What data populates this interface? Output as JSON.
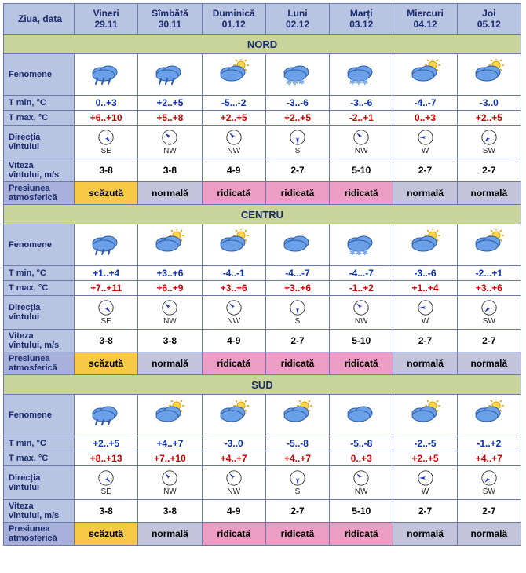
{
  "colors": {
    "header_bg": "#b7c4e2",
    "header_text": "#1a2a6e",
    "region_bg": "#c9d49a",
    "border": "#6a7aa8",
    "tmin_text": "#0a2fb8",
    "tmax_text": "#d30000",
    "press_label_bg": "#a6b0d8",
    "press_low_bg": "#f7c945",
    "press_normal_bg": "#c3c3dc",
    "press_high_bg": "#ec9dc4",
    "cloud_fill": "#6aa0e8",
    "cloud_stroke": "#2d5aa8",
    "sun_fill": "#ffd54a",
    "sun_stroke": "#e0a100",
    "snow_color": "#7aa8e6",
    "compass_ring": "#333333",
    "compass_needle": "#1a2fb8"
  },
  "header": {
    "corner": "Ziua, data",
    "days": [
      {
        "label": "Vineri\n29.11"
      },
      {
        "label": "Sîmbătă\n30.11"
      },
      {
        "label": "Duminică\n01.12"
      },
      {
        "label": "Luni\n02.12"
      },
      {
        "label": "Marți\n03.12"
      },
      {
        "label": "Miercuri\n04.12"
      },
      {
        "label": "Joi\n05.12"
      }
    ]
  },
  "row_labels": {
    "fen": "Fenomene",
    "tmin": "T min, °C",
    "tmax": "T max, °C",
    "dir": "Direcția\nvîntului",
    "speed": "Viteza\nvîntului, m/s",
    "press": "Presiunea\natmosferică"
  },
  "regions": [
    {
      "name": "NORD",
      "fen": [
        "rain",
        "rain",
        "suncloud",
        "snow",
        "snow",
        "suncloud",
        "suncloud"
      ],
      "tmin": [
        "0..+3",
        "+2..+5",
        "-5...-2",
        "-3..-6",
        "-3..-6",
        "-4..-7",
        "-3..0"
      ],
      "tmax": [
        "+6..+10",
        "+5..+8",
        "+2..+5",
        "+2..+5",
        "-2..+1",
        "0..+3",
        "+2..+5"
      ],
      "dir_code": [
        "SE",
        "NW",
        "NW",
        "S",
        "NW",
        "W",
        "SW"
      ],
      "dir_angle": [
        135,
        315,
        315,
        180,
        315,
        270,
        225
      ],
      "speed": [
        "3-8",
        "3-8",
        "4-9",
        "2-7",
        "5-10",
        "2-7",
        "2-7"
      ],
      "press": [
        "scăzută",
        "normală",
        "ridicată",
        "ridicată",
        "ridicată",
        "normală",
        "normală"
      ]
    },
    {
      "name": "CENTRU",
      "fen": [
        "rain",
        "suncloud",
        "suncloud",
        "cloud",
        "snow",
        "suncloud",
        "suncloud"
      ],
      "tmin": [
        "+1..+4",
        "+3..+6",
        "-4..-1",
        "-4...-7",
        "-4...-7",
        "-3..-6",
        "-2...+1"
      ],
      "tmax": [
        "+7..+11",
        "+6..+9",
        "+3..+6",
        "+3..+6",
        "-1..+2",
        "+1..+4",
        "+3..+6"
      ],
      "dir_code": [
        "SE",
        "NW",
        "NW",
        "S",
        "NW",
        "W",
        "SW"
      ],
      "dir_angle": [
        135,
        315,
        315,
        180,
        315,
        270,
        225
      ],
      "speed": [
        "3-8",
        "3-8",
        "4-9",
        "2-7",
        "5-10",
        "2-7",
        "2-7"
      ],
      "press": [
        "scăzută",
        "normală",
        "ridicată",
        "ridicată",
        "ridicată",
        "normală",
        "normală"
      ]
    },
    {
      "name": "SUD",
      "fen": [
        "rain",
        "suncloud",
        "suncloud",
        "suncloud",
        "cloud",
        "suncloud",
        "suncloud"
      ],
      "tmin": [
        "+2..+5",
        "+4..+7",
        "-3..0",
        "-5..-8",
        "-5..-8",
        "-2..-5",
        "-1..+2"
      ],
      "tmax": [
        "+8..+13",
        "+7..+10",
        "+4..+7",
        "+4..+7",
        "0..+3",
        "+2..+5",
        "+4..+7"
      ],
      "dir_code": [
        "SE",
        "NW",
        "NW",
        "S",
        "NW",
        "W",
        "SW"
      ],
      "dir_angle": [
        135,
        315,
        315,
        180,
        315,
        270,
        225
      ],
      "speed": [
        "3-8",
        "3-8",
        "4-9",
        "2-7",
        "5-10",
        "2-7",
        "2-7"
      ],
      "press": [
        "scăzută",
        "normală",
        "ridicată",
        "ridicată",
        "ridicată",
        "normală",
        "normală"
      ]
    }
  ]
}
